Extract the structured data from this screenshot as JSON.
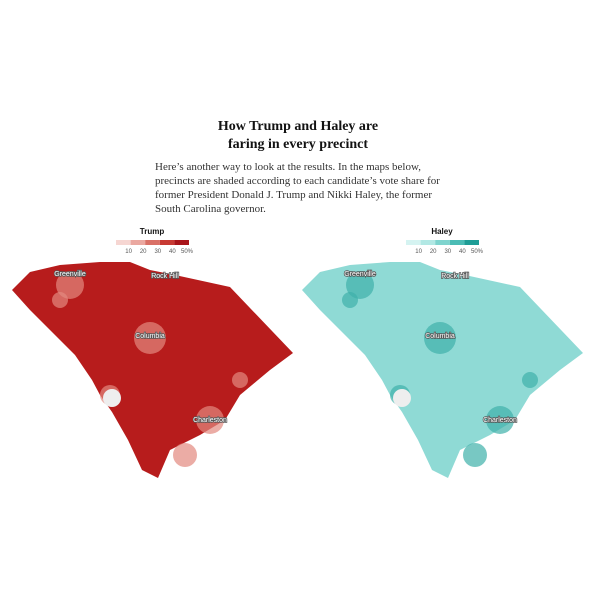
{
  "header": {
    "title_line1": "How Trump and Haley are",
    "title_line2": "faring in every precinct"
  },
  "intro": {
    "lines": [
      "Here’s another way to look at the results. In the maps below,",
      "precincts are shaded according to each candidate’s vote share for",
      "former President Donald J. Trump and Nikki Haley, the former",
      "South Carolina governor."
    ]
  },
  "maps": [
    {
      "legend_title": "Trump",
      "legend_ticks": [
        "10",
        "20",
        "30",
        "40",
        "50%"
      ],
      "cities": [
        "Greenville",
        "Rock Hill",
        "Columbia",
        "Charleston"
      ]
    },
    {
      "legend_title": "Haley",
      "legend_ticks": [
        "10",
        "20",
        "30",
        "40",
        "50%"
      ],
      "cities": [
        "Greenville",
        "Rock Hill",
        "Columbia",
        "Charleston"
      ]
    }
  ]
}
